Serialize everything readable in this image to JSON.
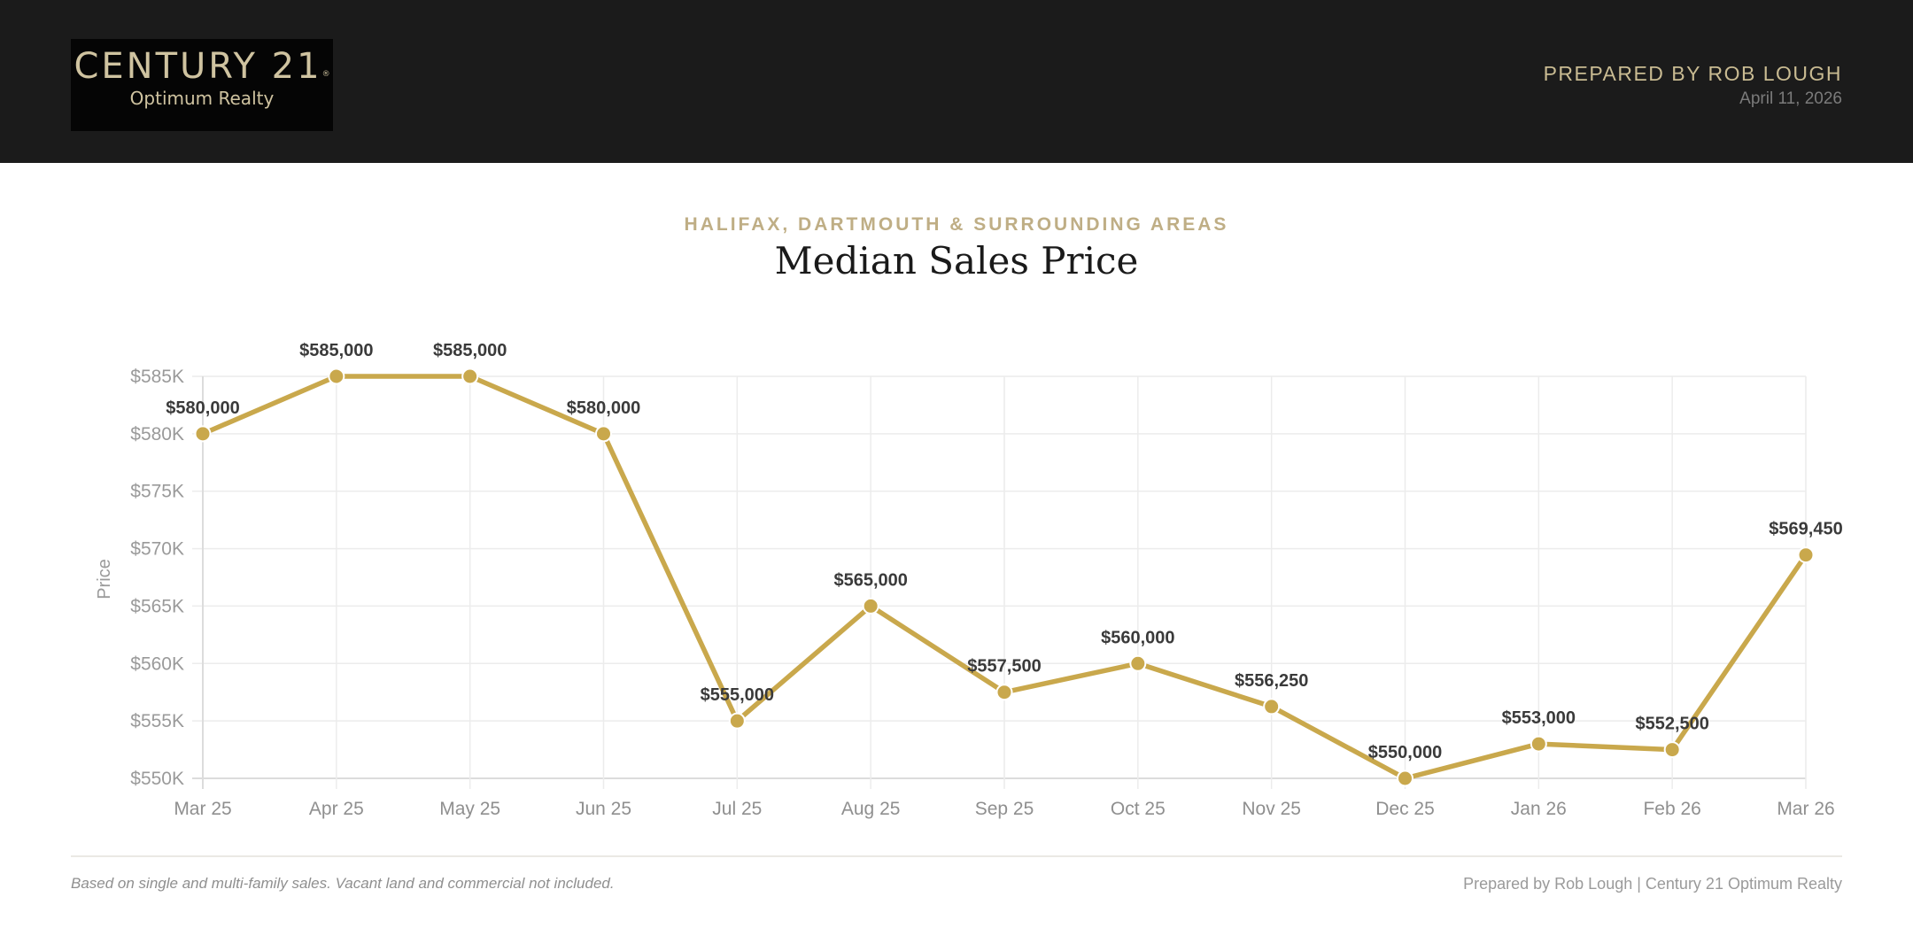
{
  "header": {
    "logo_main": "CENTURY 21",
    "logo_reg": "®",
    "logo_sub": "Optimum Realty",
    "prepared_by": "PREPARED BY ROB LOUGH",
    "date": "April 11, 2026"
  },
  "report": {
    "subtitle": "HALIFAX, DARTMOUTH & SURROUNDING AREAS",
    "title": "Median Sales Price"
  },
  "footer": {
    "note": "Based on single and multi-family sales. Vacant land and commercial not included.",
    "credit": "Prepared by Rob Lough | Century 21 Optimum Realty"
  },
  "colors": {
    "header_bg": "#1b1b1b",
    "gold_accent": "#c9a84c",
    "logo_text": "#cfc3a0",
    "subtitle": "#bfae85"
  },
  "chart_data": {
    "type": "line",
    "title": "Median Sales Price",
    "subtitle": "HALIFAX, DARTMOUTH & SURROUNDING AREAS",
    "xlabel": "",
    "ylabel": "Price",
    "ylim": [
      550000,
      585000
    ],
    "yticks": [
      550000,
      555000,
      560000,
      565000,
      570000,
      575000,
      580000,
      585000
    ],
    "ytick_labels": [
      "$550K",
      "$555K",
      "$560K",
      "$565K",
      "$570K",
      "$575K",
      "$580K",
      "$585K"
    ],
    "grid": true,
    "legend": "none",
    "categories": [
      "Mar 25",
      "Apr 25",
      "May 25",
      "Jun 25",
      "Jul 25",
      "Aug 25",
      "Sep 25",
      "Oct 25",
      "Nov 25",
      "Dec 25",
      "Jan 26",
      "Feb 26",
      "Mar 26"
    ],
    "series": [
      {
        "name": "Median Sales Price",
        "color": "#c9a84c",
        "values": [
          580000,
          585000,
          585000,
          580000,
          555000,
          565000,
          557500,
          560000,
          556250,
          550000,
          553000,
          552500,
          569450
        ],
        "labels": [
          "$580,000",
          "$585,000",
          "$585,000",
          "$580,000",
          "$555,000",
          "$565,000",
          "$557,500",
          "$560,000",
          "$556,250",
          "$550,000",
          "$553,000",
          "$552,500",
          "$569,450"
        ]
      }
    ]
  }
}
